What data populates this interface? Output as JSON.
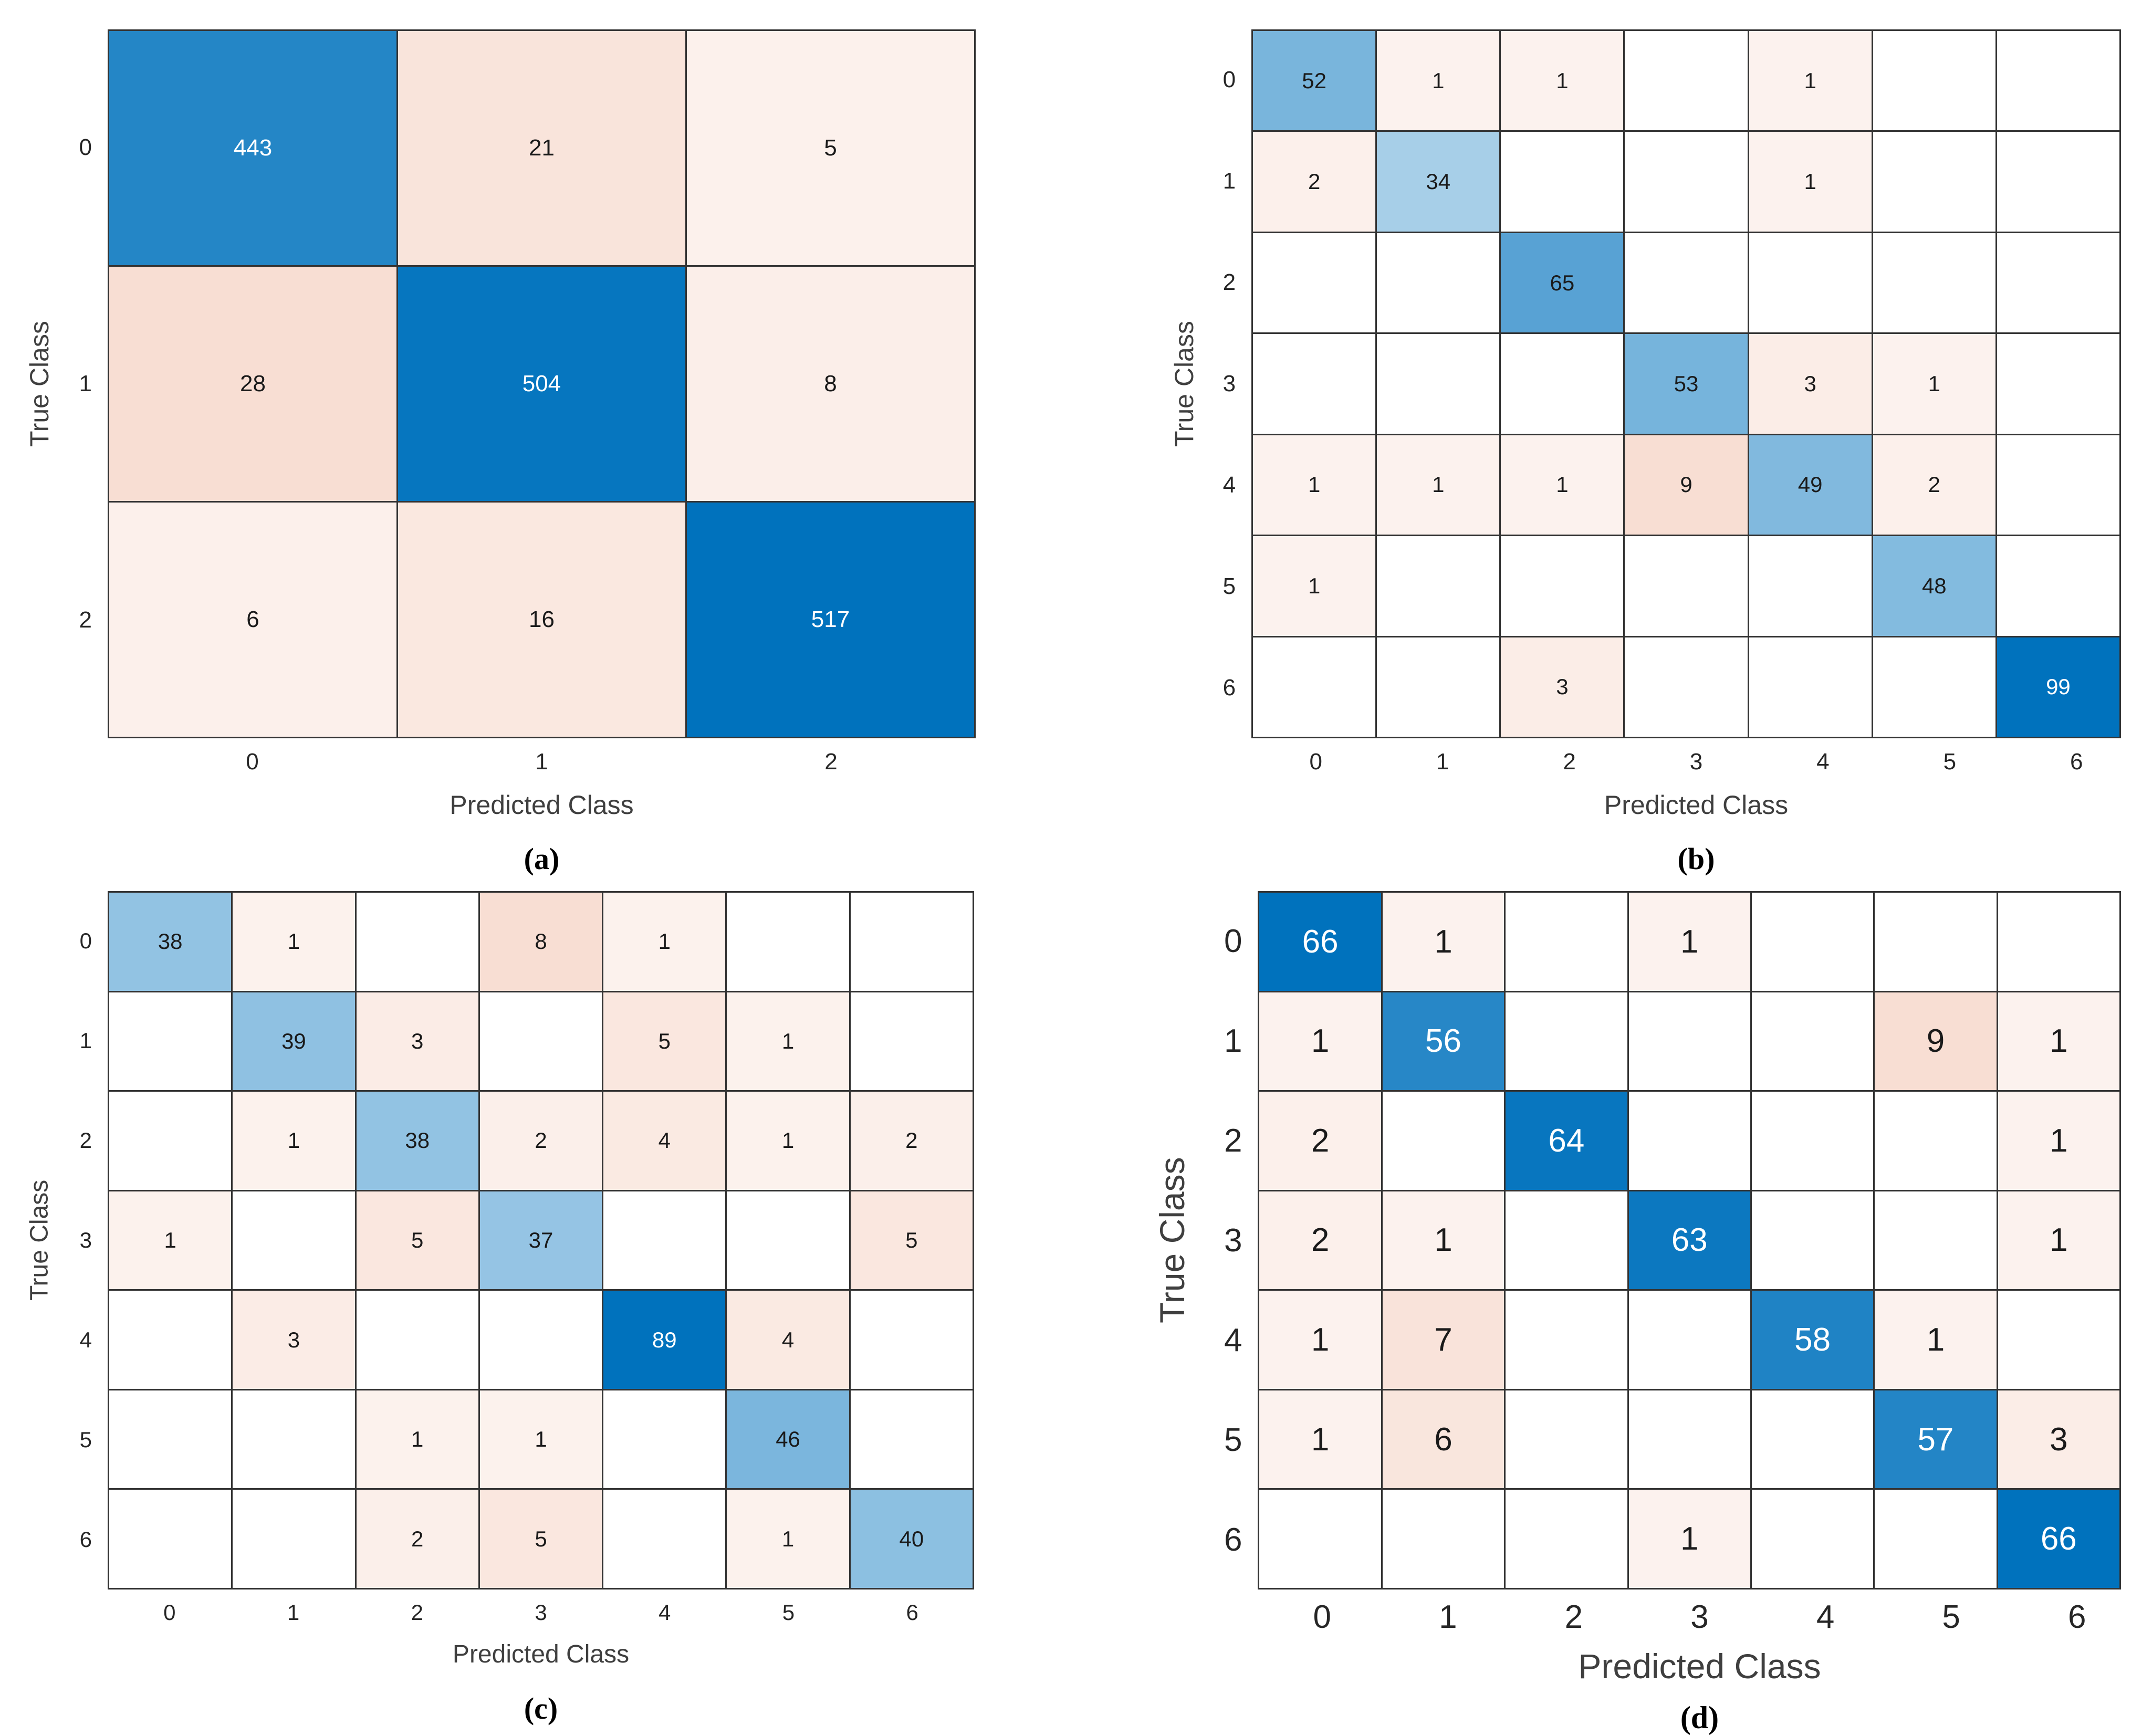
{
  "colors": {
    "background": "#ffffff",
    "grid": "#333333",
    "tick_text": "#262626",
    "axis_label_text": "#3f3f3f",
    "value_text_dark": "#1a1a1a",
    "value_text_light": "#ffffff",
    "diagonal_base": "#0072BD",
    "off_diagonal_base": "#D95319"
  },
  "chart_data": [
    {
      "type": "heatmap",
      "subtype": "confusion-matrix",
      "caption": "(a)",
      "xlabel": "Predicted Class",
      "ylabel": "True Class",
      "x_ticks": [
        "0",
        "1",
        "2"
      ],
      "y_ticks": [
        "0",
        "1",
        "2"
      ],
      "matrix": [
        [
          443,
          21,
          5
        ],
        [
          28,
          504,
          8
        ],
        [
          6,
          16,
          517
        ]
      ],
      "colormap": {
        "diagonal": "#0072BD",
        "off_diagonal": "#D95319",
        "zero": "#ffffff"
      },
      "legend": "none",
      "grid": true
    },
    {
      "type": "heatmap",
      "subtype": "confusion-matrix",
      "caption": "(b)",
      "xlabel": "Predicted Class",
      "ylabel": "True Class",
      "x_ticks": [
        "0",
        "1",
        "2",
        "3",
        "4",
        "5",
        "6"
      ],
      "y_ticks": [
        "0",
        "1",
        "2",
        "3",
        "4",
        "5",
        "6"
      ],
      "matrix": [
        [
          52,
          1,
          1,
          null,
          1,
          null,
          null
        ],
        [
          2,
          34,
          null,
          null,
          1,
          null,
          null
        ],
        [
          null,
          null,
          65,
          null,
          null,
          null,
          null
        ],
        [
          null,
          null,
          null,
          53,
          3,
          1,
          null
        ],
        [
          1,
          1,
          1,
          9,
          49,
          2,
          null
        ],
        [
          1,
          null,
          null,
          null,
          null,
          48,
          null
        ],
        [
          null,
          null,
          3,
          null,
          null,
          null,
          99
        ]
      ],
      "colormap": {
        "diagonal": "#0072BD",
        "off_diagonal": "#D95319",
        "zero": "#ffffff"
      },
      "legend": "none",
      "grid": true
    },
    {
      "type": "heatmap",
      "subtype": "confusion-matrix",
      "caption": "(c)",
      "xlabel": "Predicted Class",
      "ylabel": "True Class",
      "x_ticks": [
        "0",
        "1",
        "2",
        "3",
        "4",
        "5",
        "6"
      ],
      "y_ticks": [
        "0",
        "1",
        "2",
        "3",
        "4",
        "5",
        "6"
      ],
      "matrix": [
        [
          38,
          1,
          null,
          8,
          1,
          null,
          null
        ],
        [
          null,
          39,
          3,
          null,
          5,
          1,
          null
        ],
        [
          null,
          1,
          38,
          2,
          4,
          1,
          2
        ],
        [
          1,
          null,
          5,
          37,
          null,
          null,
          5
        ],
        [
          null,
          3,
          null,
          null,
          89,
          4,
          null
        ],
        [
          null,
          null,
          1,
          1,
          null,
          46,
          null
        ],
        [
          null,
          null,
          2,
          5,
          null,
          1,
          40
        ]
      ],
      "colormap": {
        "diagonal": "#0072BD",
        "off_diagonal": "#D95319",
        "zero": "#ffffff"
      },
      "legend": "none",
      "grid": true
    },
    {
      "type": "heatmap",
      "subtype": "confusion-matrix",
      "caption": "(d)",
      "xlabel": "Predicted Class",
      "ylabel": "True Class",
      "x_ticks": [
        "0",
        "1",
        "2",
        "3",
        "4",
        "5",
        "6"
      ],
      "y_ticks": [
        "0",
        "1",
        "2",
        "3",
        "4",
        "5",
        "6"
      ],
      "matrix": [
        [
          66,
          1,
          null,
          1,
          null,
          null,
          null
        ],
        [
          1,
          56,
          null,
          null,
          null,
          9,
          1
        ],
        [
          2,
          null,
          64,
          null,
          null,
          null,
          1
        ],
        [
          2,
          1,
          null,
          63,
          null,
          null,
          1
        ],
        [
          1,
          7,
          null,
          null,
          58,
          1,
          null
        ],
        [
          1,
          6,
          null,
          null,
          null,
          57,
          3
        ],
        [
          null,
          null,
          null,
          1,
          null,
          null,
          66
        ]
      ],
      "colormap": {
        "diagonal": "#0072BD",
        "off_diagonal": "#D95319",
        "zero": "#ffffff"
      },
      "legend": "none",
      "grid": true
    }
  ]
}
